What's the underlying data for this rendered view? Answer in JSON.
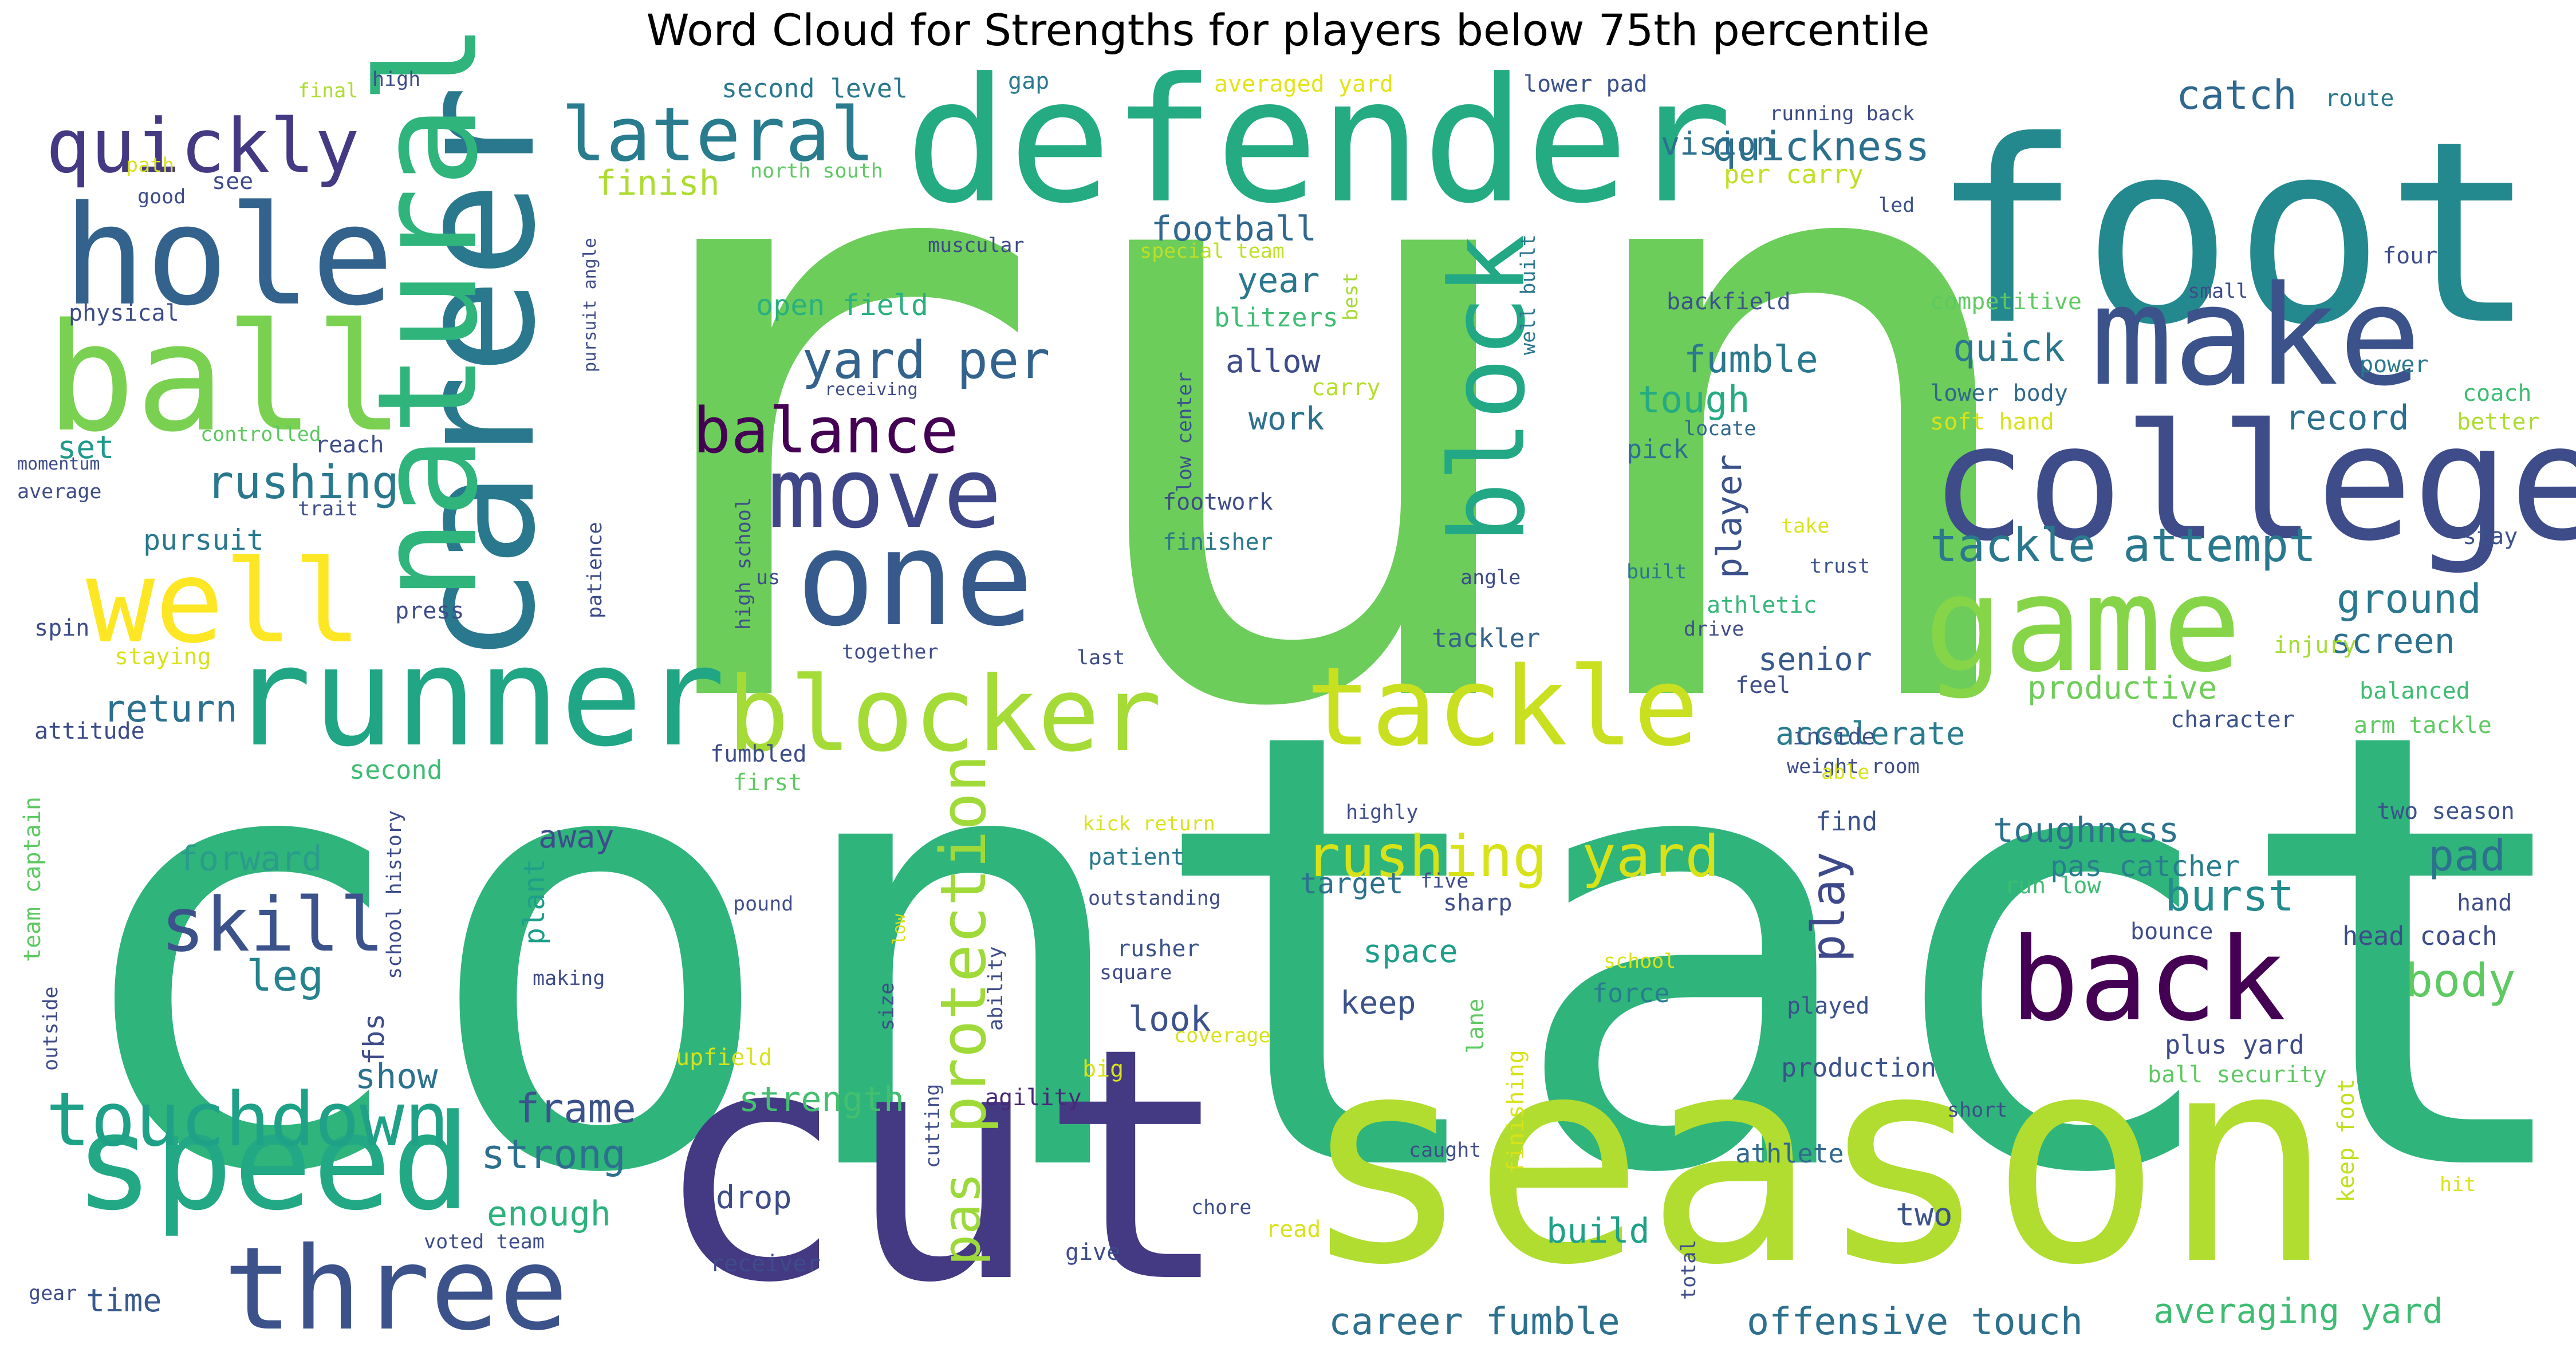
{
  "title": "Word Cloud for Strengths for players below 75th percentile",
  "chart_data": {
    "type": "wordcloud",
    "title": "Word Cloud for Strengths for players below 75th percentile",
    "colormap": "viridis",
    "background": "#ffffff",
    "words": [
      {
        "text": "run",
        "color": "#6ccd5a"
      },
      {
        "text": "contact",
        "color": "#2fb47c"
      },
      {
        "text": "cut",
        "color": "#443983"
      },
      {
        "text": "season",
        "color": "#b0dd2f"
      },
      {
        "text": "foot",
        "color": "#23898e"
      },
      {
        "text": "defender",
        "color": "#25ab82"
      },
      {
        "text": "college",
        "color": "#3e4c8a"
      },
      {
        "text": "career",
        "color": "#2a788e"
      },
      {
        "text": "natural",
        "color": "#2fb47c"
      },
      {
        "text": "runner",
        "color": "#21a685"
      },
      {
        "text": "ball",
        "color": "#7ad151"
      },
      {
        "text": "hole",
        "color": "#33638d"
      },
      {
        "text": "make",
        "color": "#3b528b"
      },
      {
        "text": "game",
        "color": "#86d549"
      },
      {
        "text": "speed",
        "color": "#22a884"
      },
      {
        "text": "one",
        "color": "#375a8c"
      },
      {
        "text": "move",
        "color": "#3f4788"
      },
      {
        "text": "blocker",
        "color": "#a5db36"
      },
      {
        "text": "tackle",
        "color": "#c8e020"
      },
      {
        "text": "back",
        "color": "#440154"
      },
      {
        "text": "three",
        "color": "#3b528b"
      },
      {
        "text": "block",
        "color": "#22a884"
      },
      {
        "text": "well",
        "color": "#fde725"
      },
      {
        "text": "quickly",
        "color": "#443a83"
      },
      {
        "text": "lateral",
        "color": "#287c8e"
      },
      {
        "text": "touchdown",
        "color": "#1fa187"
      },
      {
        "text": "skill",
        "color": "#3b528b"
      },
      {
        "text": "balance",
        "color": "#440154"
      },
      {
        "text": "protection",
        "color": "#a0da39"
      },
      {
        "text": "rushing yard",
        "color": "#d8e219"
      },
      {
        "text": "yard per",
        "color": "#33638d"
      },
      {
        "text": "tackle attempt",
        "color": "#2a788e"
      },
      {
        "text": "rushing",
        "color": "#2a788e"
      },
      {
        "text": "play",
        "color": "#3e4989"
      },
      {
        "text": "pas",
        "color": "#9dd93b"
      },
      {
        "text": "quickness",
        "color": "#2d708e"
      },
      {
        "text": "catch",
        "color": "#31688e"
      },
      {
        "text": "ground",
        "color": "#2a788e"
      },
      {
        "text": "fumble",
        "color": "#2a788e"
      },
      {
        "text": "body",
        "color": "#5ec962"
      },
      {
        "text": "burst",
        "color": "#238a8d"
      },
      {
        "text": "pad",
        "color": "#2c718e"
      },
      {
        "text": "leg",
        "color": "#26828e"
      },
      {
        "text": "forward",
        "color": "#2a9d8a"
      },
      {
        "text": "return",
        "color": "#2d708e"
      },
      {
        "text": "strength",
        "color": "#44bf70"
      },
      {
        "text": "strong",
        "color": "#2d708e"
      },
      {
        "text": "frame",
        "color": "#3b528b"
      },
      {
        "text": "career fumble",
        "color": "#2d708e"
      },
      {
        "text": "offensive touch",
        "color": "#2d708e"
      },
      {
        "text": "averaging yard",
        "color": "#3fbc73"
      },
      {
        "text": "toughness",
        "color": "#2c718e"
      },
      {
        "text": "pas catcher",
        "color": "#287d8e"
      },
      {
        "text": "quick",
        "color": "#2a778e"
      },
      {
        "text": "tough",
        "color": "#25ab82"
      },
      {
        "text": "record",
        "color": "#2d708e"
      },
      {
        "text": "screen",
        "color": "#2d708e"
      },
      {
        "text": "productive",
        "color": "#6ece58"
      },
      {
        "text": "accelerate",
        "color": "#287c8e"
      },
      {
        "text": "senior",
        "color": "#38598c"
      },
      {
        "text": "player",
        "color": "#3b528b"
      },
      {
        "text": "football",
        "color": "#31688e"
      },
      {
        "text": "year",
        "color": "#2a788e"
      },
      {
        "text": "finish",
        "color": "#addc30"
      },
      {
        "text": "vision",
        "color": "#2d708e"
      },
      {
        "text": "per carry",
        "color": "#c2df23"
      },
      {
        "text": "open field",
        "color": "#2ab07f"
      },
      {
        "text": "allow",
        "color": "#3e4c8a"
      },
      {
        "text": "work",
        "color": "#2c718e"
      },
      {
        "text": "set",
        "color": "#1f9a8a"
      },
      {
        "text": "pursuit",
        "color": "#2a788e"
      },
      {
        "text": "show",
        "color": "#2c728e"
      },
      {
        "text": "enough",
        "color": "#2db27d"
      },
      {
        "text": "drop",
        "color": "#3e4c8a"
      },
      {
        "text": "time",
        "color": "#38598c"
      },
      {
        "text": "look",
        "color": "#3b528b"
      },
      {
        "text": "keep",
        "color": "#3b528b"
      },
      {
        "text": "space",
        "color": "#1f9e89"
      },
      {
        "text": "target",
        "color": "#2d708e"
      },
      {
        "text": "build",
        "color": "#1fa187"
      },
      {
        "text": "two",
        "color": "#3b528b"
      },
      {
        "text": "away",
        "color": "#3e4c8a"
      },
      {
        "text": "plant",
        "color": "#1f9e89"
      },
      {
        "text": "fbs",
        "color": "#3e4c8a"
      },
      {
        "text": "force",
        "color": "#287c8e"
      },
      {
        "text": "find",
        "color": "#3b528b"
      },
      {
        "text": "tackler",
        "color": "#33638d"
      },
      {
        "text": "athletic",
        "color": "#35b779"
      },
      {
        "text": "pick",
        "color": "#2d708e"
      },
      {
        "text": "blitzers",
        "color": "#3fbc73"
      },
      {
        "text": "footwork",
        "color": "#3e4c8a"
      },
      {
        "text": "finisher",
        "color": "#2a788e"
      },
      {
        "text": "carry",
        "color": "#b5de2b"
      },
      {
        "text": "special team",
        "color": "#bddf26"
      },
      {
        "text": "second level",
        "color": "#2a788e"
      },
      {
        "text": "gap",
        "color": "#2a788e"
      },
      {
        "text": "averaged yard",
        "color": "#e2e418"
      },
      {
        "text": "lower pad",
        "color": "#3b528b"
      },
      {
        "text": "running back",
        "color": "#3e4c8a"
      },
      {
        "text": "route",
        "color": "#2a788e"
      },
      {
        "text": "four",
        "color": "#3e4c8a"
      },
      {
        "text": "competitive",
        "color": "#5ec962"
      },
      {
        "text": "small",
        "color": "#3e4c8a"
      },
      {
        "text": "power",
        "color": "#2a788e"
      },
      {
        "text": "coach",
        "color": "#3fbc73"
      },
      {
        "text": "better",
        "color": "#addc30"
      },
      {
        "text": "stay",
        "color": "#3b528b"
      },
      {
        "text": "lower body",
        "color": "#31688e"
      },
      {
        "text": "soft hand",
        "color": "#d8e219"
      },
      {
        "text": "locate",
        "color": "#31688e"
      },
      {
        "text": "backfield",
        "color": "#3b528b"
      },
      {
        "text": "well built",
        "color": "#2a788e"
      },
      {
        "text": "low center",
        "color": "#3b528b"
      },
      {
        "text": "best",
        "color": "#a5db36"
      },
      {
        "text": "led",
        "color": "#3b528b"
      },
      {
        "text": "trust",
        "color": "#3b528b"
      },
      {
        "text": "take",
        "color": "#d8e219"
      },
      {
        "text": "built",
        "color": "#2a788e"
      },
      {
        "text": "angle",
        "color": "#3e4c8a"
      },
      {
        "text": "drive",
        "color": "#3e4c8a"
      },
      {
        "text": "feel",
        "color": "#3e4c8a"
      },
      {
        "text": "inside",
        "color": "#3b528b"
      },
      {
        "text": "weight room",
        "color": "#3e4c8a"
      },
      {
        "text": "able",
        "color": "#d8e219"
      },
      {
        "text": "character",
        "color": "#3b528b"
      },
      {
        "text": "balanced",
        "color": "#3fbc73"
      },
      {
        "text": "arm tackle",
        "color": "#5ec962"
      },
      {
        "text": "injury",
        "color": "#a5db36"
      },
      {
        "text": "two season",
        "color": "#3b528b"
      },
      {
        "text": "hand",
        "color": "#3e4c8a"
      },
      {
        "text": "head coach",
        "color": "#3e4c8a"
      },
      {
        "text": "bounce",
        "color": "#3e4c8a"
      },
      {
        "text": "run low",
        "color": "#3fbc73"
      },
      {
        "text": "plus yard",
        "color": "#3e4c8a"
      },
      {
        "text": "ball security",
        "color": "#5ec962"
      },
      {
        "text": "production",
        "color": "#3b528b"
      },
      {
        "text": "played",
        "color": "#3b528b"
      },
      {
        "text": "short",
        "color": "#3e4c8a"
      },
      {
        "text": "athlete",
        "color": "#31688e"
      },
      {
        "text": "school",
        "color": "#d8e219"
      },
      {
        "text": "keep foot",
        "color": "#c2df23"
      },
      {
        "text": "hit",
        "color": "#d8e219"
      },
      {
        "text": "total",
        "color": "#3e4c8a"
      },
      {
        "text": "lane",
        "color": "#5ec962"
      },
      {
        "text": "finishing",
        "color": "#d8e219"
      },
      {
        "text": "caught",
        "color": "#3e4c8a"
      },
      {
        "text": "chore",
        "color": "#3e4c8a"
      },
      {
        "text": "read",
        "color": "#d8e219"
      },
      {
        "text": "give",
        "color": "#3e4c8a"
      },
      {
        "text": "receiver",
        "color": "#3e4c8a"
      },
      {
        "text": "agility",
        "color": "#482878"
      },
      {
        "text": "big",
        "color": "#d8e219"
      },
      {
        "text": "upfield",
        "color": "#d8e219"
      },
      {
        "text": "coverage",
        "color": "#d8e219"
      },
      {
        "text": "square",
        "color": "#3e4c8a"
      },
      {
        "text": "rusher",
        "color": "#3b528b"
      },
      {
        "text": "five",
        "color": "#3e4c8a"
      },
      {
        "text": "sharp",
        "color": "#3e4c8a"
      },
      {
        "text": "highly",
        "color": "#3e4c8a"
      },
      {
        "text": "kick return",
        "color": "#d8e219"
      },
      {
        "text": "patient",
        "color": "#2a788e"
      },
      {
        "text": "outstanding",
        "color": "#3e4c8a"
      },
      {
        "text": "pound",
        "color": "#3e4c8a"
      },
      {
        "text": "size",
        "color": "#3e4c8a"
      },
      {
        "text": "ability",
        "color": "#3e4c8a"
      },
      {
        "text": "low",
        "color": "#d8e219"
      },
      {
        "text": "cutting",
        "color": "#3e4c8a"
      },
      {
        "text": "fumbled",
        "color": "#3e4c8a"
      },
      {
        "text": "first",
        "color": "#5ec962"
      },
      {
        "text": "together",
        "color": "#3e4c8a"
      },
      {
        "text": "last",
        "color": "#3e4c8a"
      },
      {
        "text": "us",
        "color": "#3e4c8a"
      },
      {
        "text": "high school",
        "color": "#3e4c8a"
      },
      {
        "text": "patience",
        "color": "#3e4c8a"
      },
      {
        "text": "pursuit angle",
        "color": "#3e4c8a"
      },
      {
        "text": "receiving",
        "color": "#3e4c8a"
      },
      {
        "text": "muscular",
        "color": "#3e4c8a"
      },
      {
        "text": "north south",
        "color": "#5ec962"
      },
      {
        "text": "path",
        "color": "#d8e219"
      },
      {
        "text": "good",
        "color": "#3e4c8a"
      },
      {
        "text": "see",
        "color": "#3e4c8a"
      },
      {
        "text": "final",
        "color": "#addc30"
      },
      {
        "text": "high",
        "color": "#3e4c8a"
      },
      {
        "text": "physical",
        "color": "#3e4c8a"
      },
      {
        "text": "controlled",
        "color": "#5ec962"
      },
      {
        "text": "reach",
        "color": "#3e4c8a"
      },
      {
        "text": "momentum",
        "color": "#3e4c8a"
      },
      {
        "text": "average",
        "color": "#3e4c8a"
      },
      {
        "text": "trait",
        "color": "#3e4c8a"
      },
      {
        "text": "spin",
        "color": "#3e4c8a"
      },
      {
        "text": "press",
        "color": "#3e4c8a"
      },
      {
        "text": "staying",
        "color": "#d8e219"
      },
      {
        "text": "attitude",
        "color": "#3e4c8a"
      },
      {
        "text": "second",
        "color": "#3fbc73"
      },
      {
        "text": "team captain",
        "color": "#5ec962"
      },
      {
        "text": "school history",
        "color": "#3e4c8a"
      },
      {
        "text": "outside",
        "color": "#3e4c8a"
      },
      {
        "text": "making",
        "color": "#3e4c8a"
      },
      {
        "text": "voted team",
        "color": "#3e4c8a"
      },
      {
        "text": "gear",
        "color": "#3e4c8a"
      }
    ]
  }
}
